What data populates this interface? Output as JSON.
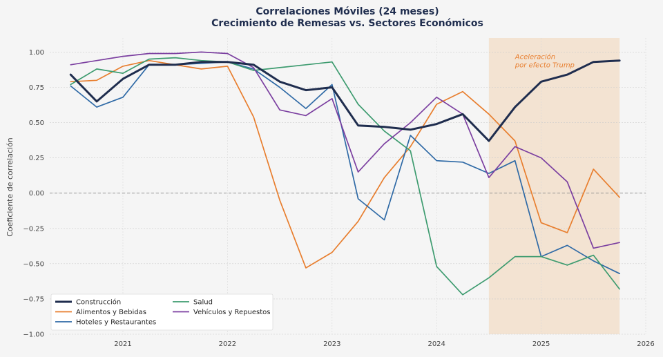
{
  "chart_data": {
    "type": "line",
    "title": "Correlaciones Móviles (24 meses)",
    "subtitle": "Crecimiento de Remesas vs. Sectores Económicos",
    "xlabel": "",
    "ylabel": "Coeficiente de correlación",
    "xlim": [
      2020.3,
      2026.0
    ],
    "ylim": [
      -1.0,
      1.1
    ],
    "x_ticks": [
      "2021",
      "2022",
      "2023",
      "2024",
      "2025",
      "2026"
    ],
    "x_tick_values": [
      2021,
      2022,
      2023,
      2024,
      2025,
      2026
    ],
    "y_ticks": [
      "1.00",
      "0.75",
      "0.50",
      "0.25",
      "0.00",
      "−0.25",
      "−0.50",
      "−0.75",
      "−1.00"
    ],
    "y_tick_values": [
      1.0,
      0.75,
      0.5,
      0.25,
      0.0,
      -0.25,
      -0.5,
      -0.75,
      -1.0
    ],
    "grid": true,
    "zero_line": true,
    "shaded_region": {
      "x_start": 2024.5,
      "x_end": 2025.75,
      "color": "#f2dcc6"
    },
    "annotation": {
      "lines": [
        "Aceleración",
        "por efecto Trump"
      ],
      "x": 2024.75,
      "y": 0.95
    },
    "x": [
      2020.5,
      2020.75,
      2021.0,
      2021.25,
      2021.5,
      2021.75,
      2022.0,
      2022.25,
      2022.5,
      2022.75,
      2023.0,
      2023.25,
      2023.5,
      2023.75,
      2024.0,
      2024.25,
      2024.5,
      2024.75,
      2025.0,
      2025.25,
      2025.5,
      2025.75
    ],
    "series": [
      {
        "name": "Construcción",
        "color": "#1f2d4e",
        "width": 3,
        "values": [
          0.84,
          0.65,
          0.81,
          0.91,
          0.91,
          0.93,
          0.93,
          0.91,
          0.79,
          0.73,
          0.75,
          0.48,
          0.47,
          0.45,
          0.49,
          0.56,
          0.37,
          0.61,
          0.79,
          0.84,
          0.93,
          0.94
        ]
      },
      {
        "name": "Alimentos y Bebidas",
        "color": "#e87e2e",
        "width": 1.7,
        "values": [
          0.79,
          0.8,
          0.9,
          0.94,
          0.91,
          0.88,
          0.9,
          0.54,
          -0.05,
          -0.53,
          -0.42,
          -0.2,
          0.11,
          0.33,
          0.63,
          0.72,
          0.56,
          0.37,
          -0.21,
          -0.28,
          0.17,
          -0.03
        ]
      },
      {
        "name": "Hoteles y Restaurantes",
        "color": "#2f6aa6",
        "width": 1.7,
        "values": [
          0.76,
          0.61,
          0.68,
          0.91,
          0.91,
          0.92,
          0.93,
          0.88,
          0.75,
          0.6,
          0.77,
          -0.04,
          -0.19,
          0.41,
          0.23,
          0.22,
          0.14,
          0.23,
          -0.45,
          -0.37,
          -0.48,
          -0.57
        ]
      },
      {
        "name": "Salud",
        "color": "#3d9b6f",
        "width": 1.7,
        "values": [
          0.77,
          0.88,
          0.85,
          0.95,
          0.96,
          0.94,
          0.93,
          0.87,
          0.89,
          0.91,
          0.93,
          0.63,
          0.44,
          0.3,
          -0.52,
          -0.72,
          -0.6,
          -0.45,
          -0.45,
          -0.51,
          -0.44,
          -0.68
        ]
      },
      {
        "name": "Vehículos y Repuestos",
        "color": "#7b3fa0",
        "width": 1.7,
        "values": [
          0.91,
          0.94,
          0.97,
          0.99,
          0.99,
          1.0,
          0.99,
          0.89,
          0.59,
          0.55,
          0.67,
          0.15,
          0.35,
          0.5,
          0.68,
          0.56,
          0.11,
          0.33,
          0.25,
          0.08,
          -0.39,
          -0.35
        ]
      }
    ],
    "legend": {
      "placement": "lower-left",
      "columns": 2
    }
  }
}
